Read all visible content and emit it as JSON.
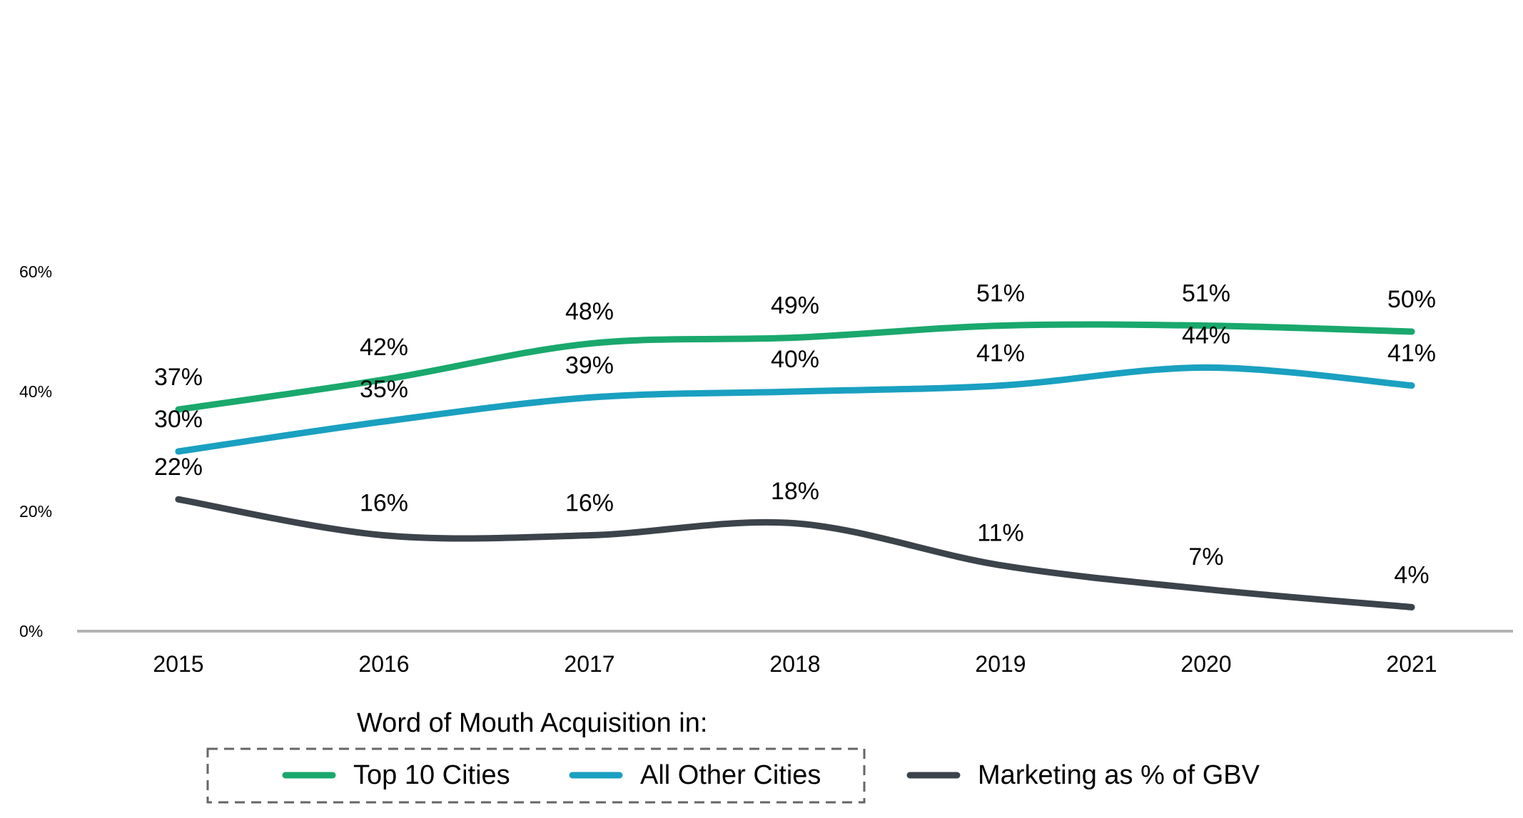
{
  "chart_data": {
    "type": "line",
    "x": [
      "2015",
      "2016",
      "2017",
      "2018",
      "2019",
      "2020",
      "2021"
    ],
    "ylim": [
      0,
      60
    ],
    "yticks": [
      "0%",
      "20%",
      "40%",
      "60%"
    ],
    "grid": false,
    "legend_title": "Word of Mouth Acquisition in:",
    "legend_position": "bottom",
    "series": [
      {
        "name": "Top 10 Cities",
        "color": "#1aa86d",
        "values": [
          37,
          42,
          48,
          49,
          51,
          51,
          50
        ],
        "labels": [
          "37%",
          "42%",
          "48%",
          "49%",
          "51%",
          "51%",
          "50%"
        ]
      },
      {
        "name": "All Other Cities",
        "color": "#1aa0c0",
        "values": [
          30,
          35,
          39,
          40,
          41,
          44,
          41
        ],
        "labels": [
          "30%",
          "35%",
          "39%",
          "40%",
          "41%",
          "44%",
          "41%"
        ]
      },
      {
        "name": "Marketing as % of GBV",
        "color": "#3c434a",
        "values": [
          22,
          16,
          16,
          18,
          11,
          7,
          4
        ],
        "labels": [
          "22%",
          "16%",
          "16%",
          "18%",
          "11%",
          "7%",
          "4%"
        ]
      }
    ]
  }
}
